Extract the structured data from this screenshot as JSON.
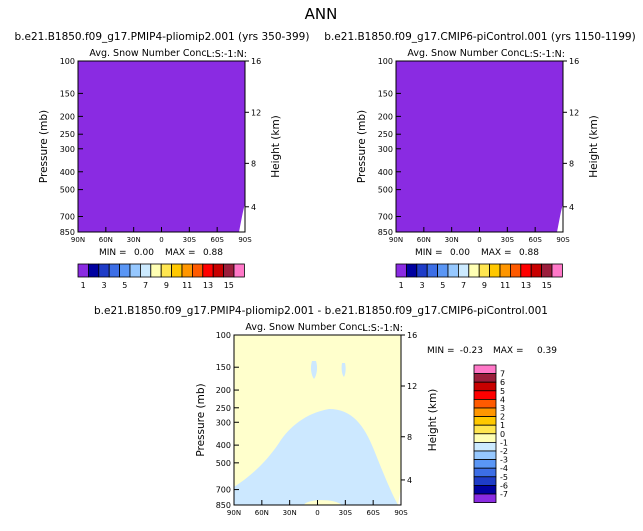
{
  "page_title": "ANN",
  "colors": {
    "field_purple": "#8a2be2",
    "diff_yellow": "#ffffcc",
    "diff_lightblue": "#cce8ff"
  },
  "chart_data": [
    {
      "type": "heatmap",
      "title": "b.e21.B1850.f09_g17.PMIP4-pliomip2.001 (yrs 350-399)",
      "subtitle": "Avg. Snow Number Conc.",
      "units_label": "L:S:-1:N:",
      "ylabel": "Pressure (mb)",
      "ylabel_right": "Height (km)",
      "x_ticks": [
        "90N",
        "60N",
        "30N",
        "0",
        "30S",
        "60S",
        "90S"
      ],
      "y_ticks": [
        "100",
        "150",
        "200",
        "250",
        "300",
        "400",
        "500",
        "700",
        "850"
      ],
      "height_ticks": [
        "16",
        "12",
        "8",
        "4"
      ],
      "stats": {
        "min_label": "MIN =",
        "min": "0.00",
        "max_label": "MAX =",
        "max": "0.88"
      },
      "colorbar": {
        "orientation": "horizontal",
        "labels": [
          "1",
          "3",
          "5",
          "7",
          "9",
          "11",
          "13",
          "15"
        ],
        "colors": [
          "#8a2be2",
          "#0000a0",
          "#1e3cc8",
          "#3c6ee6",
          "#5a96f5",
          "#96c8ff",
          "#cceaff",
          "#ffffb4",
          "#ffe650",
          "#ffc800",
          "#ff9600",
          "#ff5a00",
          "#ff0000",
          "#c80000",
          "#9b1e3c",
          "#ff78c8"
        ]
      }
    },
    {
      "type": "heatmap",
      "title": "b.e21.B1850.f09_g17.CMIP6-piControl.001 (yrs 1150-1199)",
      "subtitle": "Avg. Snow Number Conc.",
      "units_label": "L:S:-1:N:",
      "ylabel": "Pressure (mb)",
      "ylabel_right": "Height (km)",
      "x_ticks": [
        "90N",
        "60N",
        "30N",
        "0",
        "30S",
        "60S",
        "90S"
      ],
      "y_ticks": [
        "100",
        "150",
        "200",
        "250",
        "300",
        "400",
        "500",
        "700",
        "850"
      ],
      "height_ticks": [
        "16",
        "12",
        "8",
        "4"
      ],
      "stats": {
        "min_label": "MIN =",
        "min": "0.00",
        "max_label": "MAX =",
        "max": "0.88"
      },
      "colorbar": {
        "orientation": "horizontal",
        "labels": [
          "1",
          "3",
          "5",
          "7",
          "9",
          "11",
          "13",
          "15"
        ],
        "colors": [
          "#8a2be2",
          "#0000a0",
          "#1e3cc8",
          "#3c6ee6",
          "#5a96f5",
          "#96c8ff",
          "#cceaff",
          "#ffffb4",
          "#ffe650",
          "#ffc800",
          "#ff9600",
          "#ff5a00",
          "#ff0000",
          "#c80000",
          "#9b1e3c",
          "#ff78c8"
        ]
      }
    },
    {
      "type": "heatmap",
      "title": "b.e21.B1850.f09_g17.PMIP4-pliomip2.001 - b.e21.B1850.f09_g17.CMIP6-piControl.001",
      "subtitle": "Avg. Snow Number Conc.",
      "units_label": "L:S:-1:N:",
      "ylabel": "Pressure (mb)",
      "ylabel_right": "Height (km)",
      "x_ticks": [
        "90N",
        "60N",
        "30N",
        "0",
        "30S",
        "60S",
        "90S"
      ],
      "y_ticks": [
        "100",
        "150",
        "200",
        "250",
        "300",
        "400",
        "500",
        "700",
        "850"
      ],
      "height_ticks": [
        "16",
        "12",
        "8",
        "4"
      ],
      "stats": {
        "min_label": "MIN =",
        "min": "-0.23",
        "max_label": "MAX =",
        "max": "0.39"
      },
      "colorbar": {
        "orientation": "vertical",
        "labels": [
          "7",
          "6",
          "5",
          "4",
          "3",
          "2",
          "1",
          "0",
          "-1",
          "-2",
          "-3",
          "-4",
          "-5",
          "-6",
          "-7"
        ],
        "colors": [
          "#ff78c8",
          "#9b1e3c",
          "#c80000",
          "#ff0000",
          "#ff5a00",
          "#ff9600",
          "#ffc800",
          "#ffe650",
          "#ffffb4",
          "#cceaff",
          "#96c8ff",
          "#5a96f5",
          "#3c6ee6",
          "#1e3cc8",
          "#0000a0",
          "#8a2be2"
        ]
      }
    }
  ]
}
